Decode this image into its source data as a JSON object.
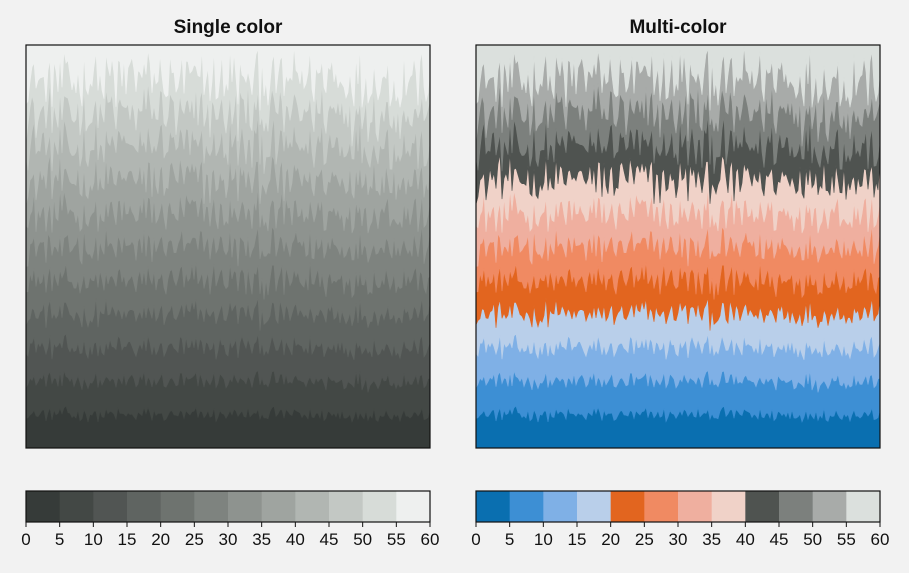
{
  "chart_data": [
    {
      "type": "contourf",
      "title": "Single color",
      "levels": [
        0,
        5,
        10,
        15,
        20,
        25,
        30,
        35,
        40,
        45,
        50,
        55,
        60
      ],
      "colors": [
        "#363b39",
        "#434845",
        "#515553",
        "#5f6461",
        "#6e736f",
        "#7e837f",
        "#8e938f",
        "#9fa4a0",
        "#b1b6b2",
        "#c3c8c4",
        "#d7dcd8",
        "#eef0ef"
      ],
      "colorbar": {
        "placement": "bottom",
        "ticks": [
          "0",
          "5",
          "10",
          "15",
          "20",
          "25",
          "30",
          "35",
          "40",
          "45",
          "50",
          "55",
          "60"
        ]
      }
    },
    {
      "type": "contourf",
      "title": "Multi-color",
      "levels": [
        0,
        5,
        10,
        15,
        20,
        25,
        30,
        35,
        40,
        45,
        50,
        55,
        60
      ],
      "colors": [
        "#0a6fb0",
        "#3d8fd4",
        "#7fb0e6",
        "#b9cfea",
        "#e2651f",
        "#f08a62",
        "#efaf9f",
        "#f0d2c8",
        "#4f5350",
        "#7c807d",
        "#a8aba9",
        "#dbe0dd"
      ],
      "colorbar": {
        "placement": "bottom",
        "ticks": [
          "0",
          "5",
          "10",
          "15",
          "20",
          "25",
          "30",
          "35",
          "40",
          "45",
          "50",
          "55",
          "60"
        ]
      }
    }
  ]
}
